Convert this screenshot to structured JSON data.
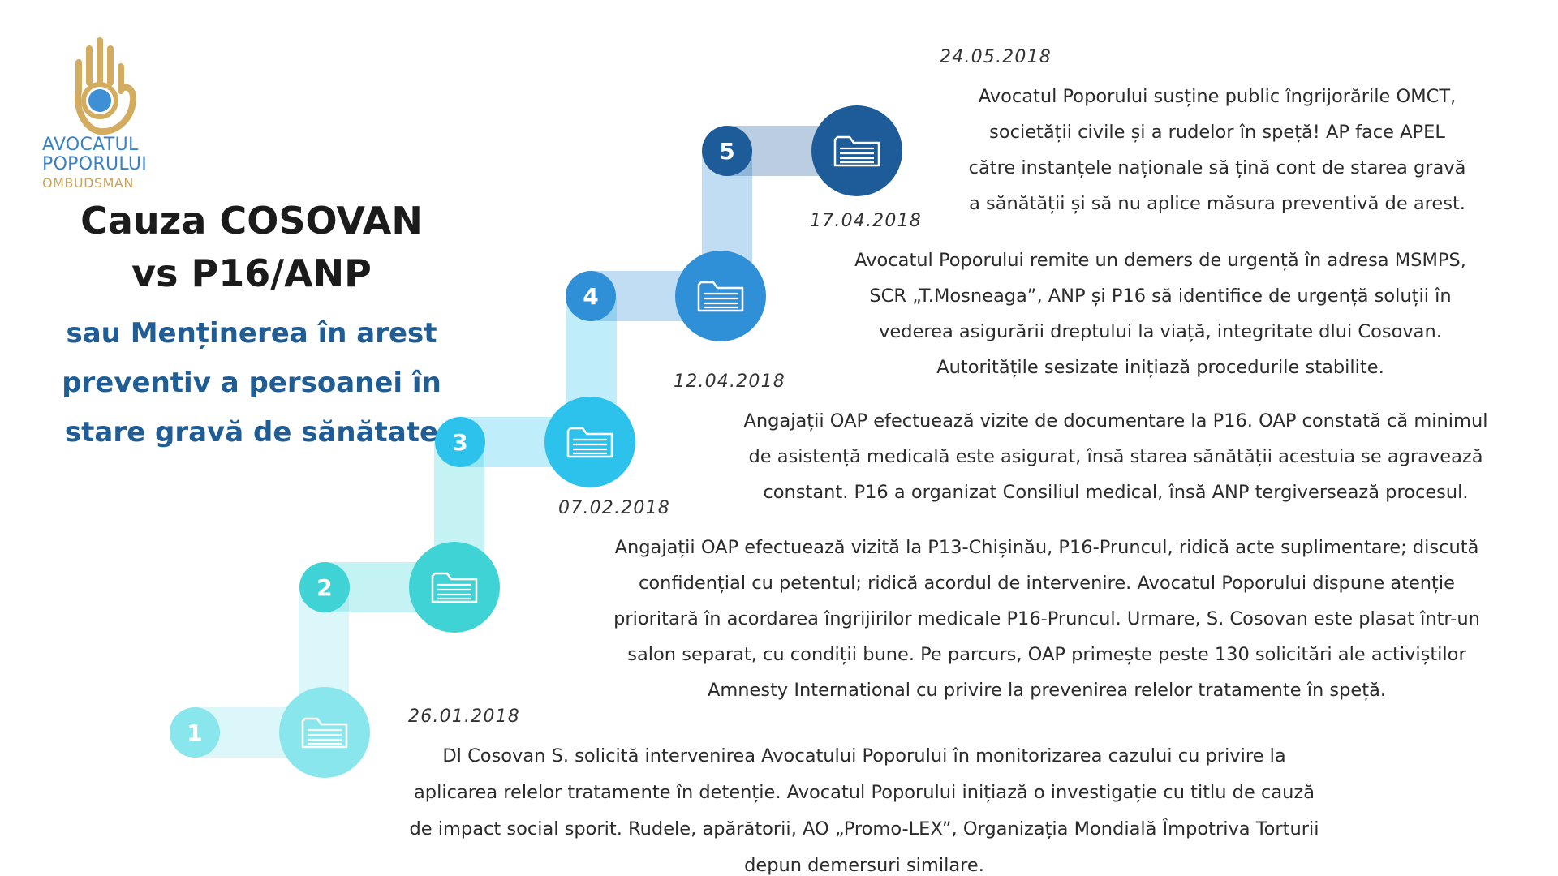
{
  "logo": {
    "line1": "AVOCATUL",
    "line2": "POPORULUI",
    "line3": "OMBUDSMAN",
    "colors": {
      "hand": "#d4ac5f",
      "dot": "#3d8fd6",
      "text_blue": "#3b82c4",
      "text_gold": "#c9a45c"
    }
  },
  "title": {
    "line1": "Cauza COSOVAN",
    "line2": "vs P16/ANP"
  },
  "subtitle": {
    "line1": "sau Menținerea în arest",
    "line2": "preventiv a persoanei în",
    "line3": "stare gravă de sănătate"
  },
  "steps": [
    {
      "number": "1",
      "icon": "folder-icon",
      "color": "#89e6ec"
    },
    {
      "number": "2",
      "icon": "folder-icon",
      "color": "#3fd3d6"
    },
    {
      "number": "3",
      "icon": "folder-icon",
      "color": "#2cc2ec"
    },
    {
      "number": "4",
      "icon": "folder-icon",
      "color": "#2f8fd7"
    },
    {
      "number": "5",
      "icon": "folder-icon",
      "color": "#1e5b99"
    }
  ],
  "events": [
    {
      "date": "26.01.2018",
      "lines": [
        "Dl Cosovan S. solicită intervenirea Avocatului Poporului în monitorizarea cazului cu privire la",
        "aplicarea relelor tratamente în detenție. Avocatul Poporului inițiază o investigație cu titlu de cauză",
        "de impact social sporit. Rudele, apărătorii, AO „Promo-LEX”, Organizația Mondială Împotriva Torturii",
        "depun demersuri similare."
      ]
    },
    {
      "date": "07.02.2018",
      "lines": [
        "Angajații OAP efectuează vizită la P13-Chișinău, P16-Pruncul, ridică acte suplimentare; discută",
        "confidențial cu petentul; ridică acordul de intervenire. Avocatul Poporului dispune atenție",
        "prioritară în acordarea îngrijirilor medicale P16-Pruncul. Urmare, S. Cosovan este plasat într-un",
        "salon separat, cu condiții bune. Pe parcurs, OAP primește peste 130 solicitări ale activiștilor",
        "Amnesty International cu privire la prevenirea relelor tratamente în speță."
      ]
    },
    {
      "date": "12.04.2018",
      "lines": [
        "Angajații OAP efectuează vizite de documentare la P16. OAP constată că minimul",
        "de asistență medicală este asigurat, însă starea sănătății acestuia se agravează",
        "constant. P16 a organizat Consiliul medical, însă ANP tergiversează procesul."
      ]
    },
    {
      "date": "17.04.2018",
      "lines": [
        "Avocatul Poporului remite un demers de urgență în adresa MSMPS,",
        "SCR „T.Mosneaga”, ANP și P16 să identifice de urgență soluții în",
        "vederea asigurării dreptului la viață, integritate dlui Cosovan.",
        "Autoritățile sesizate inițiază procedurile stabilite."
      ]
    },
    {
      "date": "24.05.2018",
      "lines": [
        "Avocatul Poporului susține public îngrijorările OMCT,",
        "societății civile și a rudelor în speță! AP face APEL",
        "către instanțele naționale să țină cont de starea gravă",
        "a sănătății și să nu aplice măsura preventivă de arest."
      ]
    }
  ]
}
